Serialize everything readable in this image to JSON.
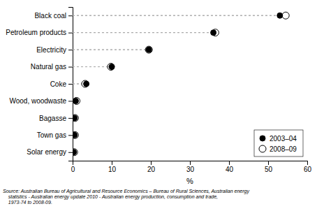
{
  "chart_data": {
    "type": "dot",
    "orientation": "horizontal",
    "categories": [
      "Black coal",
      "Petroleum products",
      "Electricity",
      "Natural gas",
      "Coke",
      "Wood, woodwaste",
      "Bagasse",
      "Town gas",
      "Solar energy"
    ],
    "series": [
      {
        "name": "2003–04",
        "color": "#000000",
        "marker": "circle",
        "line_style": "dashed",
        "values": [
          53.0,
          36.0,
          19.5,
          10.0,
          3.5,
          0.8,
          0.5,
          0.5,
          0.3
        ]
      },
      {
        "name": "2008–09",
        "color": "#ffffff",
        "marker": "circle",
        "line_style": "dashed",
        "values": [
          54.5,
          36.5,
          19.5,
          9.8,
          3.2,
          1.0,
          0.6,
          0.6,
          0.4
        ]
      }
    ],
    "xlim": [
      0,
      60
    ],
    "xticks": [
      0,
      10,
      20,
      30,
      40,
      50,
      60
    ],
    "xlabel": "%",
    "legend": "lower right",
    "grid": false,
    "annotations": [
      "Source: Australian Bureau of Agricultural and Resource Economics – Bureau of Rural Sciences, Australian energy\n    statistics - Australian energy update 2010 - Australian energy production, consumption and trade,\n    1973-74 to 2008-09."
    ]
  }
}
